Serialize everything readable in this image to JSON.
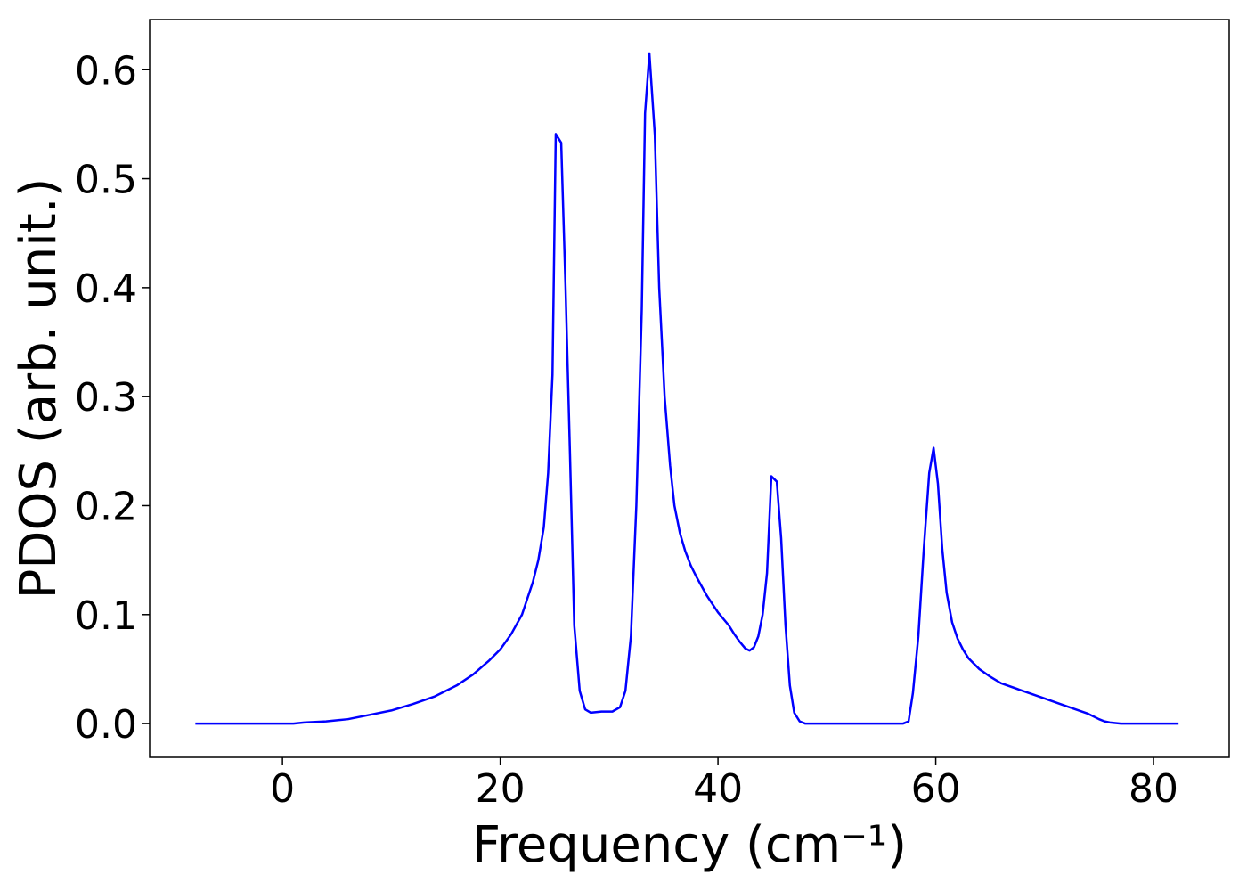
{
  "chart_data": {
    "type": "line",
    "xlabel": "Frequency (cm⁻¹)",
    "ylabel": "PDOS (arb. unit.)",
    "xlim": [
      -12.2,
      86.95
    ],
    "ylim": [
      -0.031,
      0.646
    ],
    "xticks": [
      0,
      20,
      40,
      60,
      80
    ],
    "yticks": [
      {
        "value": 0,
        "label": "0.0"
      },
      0.1,
      0.2,
      0.3,
      0.4,
      0.5,
      0.6
    ],
    "grid": false,
    "series": [
      {
        "color": "#0000ff",
        "x": [
          -8,
          -4,
          0,
          1,
          2,
          4,
          6,
          8,
          10,
          12,
          14,
          16,
          17.5,
          19,
          20,
          21,
          22,
          23,
          23.5,
          24,
          24.4,
          24.8,
          25.1,
          25.6,
          26,
          26.4,
          26.8,
          27.3,
          27.8,
          28.3,
          29.3,
          30.3,
          31,
          31.5,
          32,
          32.5,
          33,
          33.3,
          33.7,
          34.2,
          34.6,
          35.1,
          35.6,
          36,
          36.5,
          37,
          37.5,
          38,
          39,
          40,
          41,
          41.5,
          42,
          42.5,
          42.9,
          43.3,
          43.7,
          44.1,
          44.5,
          44.9,
          45.4,
          45.8,
          46.2,
          46.6,
          47,
          47.5,
          48,
          52,
          57,
          57.5,
          57.9,
          58.4,
          58.9,
          59.4,
          59.8,
          60.2,
          60.6,
          61,
          61.5,
          62,
          62.5,
          63,
          64,
          65,
          66,
          68,
          70,
          72,
          74,
          75,
          75.5,
          76,
          77,
          82.3
        ],
        "values": [
          0,
          0,
          0,
          0,
          0.001,
          0.002,
          0.004,
          0.008,
          0.012,
          0.018,
          0.025,
          0.035,
          0.045,
          0.058,
          0.068,
          0.082,
          0.1,
          0.13,
          0.15,
          0.18,
          0.23,
          0.32,
          0.541,
          0.533,
          0.4,
          0.25,
          0.09,
          0.03,
          0.013,
          0.01,
          0.011,
          0.011,
          0.015,
          0.03,
          0.08,
          0.2,
          0.38,
          0.56,
          0.615,
          0.54,
          0.4,
          0.3,
          0.237,
          0.2,
          0.175,
          0.158,
          0.145,
          0.135,
          0.117,
          0.102,
          0.09,
          0.082,
          0.075,
          0.069,
          0.067,
          0.07,
          0.08,
          0.1,
          0.138,
          0.227,
          0.222,
          0.17,
          0.09,
          0.035,
          0.01,
          0.002,
          0,
          0,
          0,
          0.002,
          0.028,
          0.08,
          0.16,
          0.23,
          0.253,
          0.22,
          0.16,
          0.12,
          0.093,
          0.078,
          0.068,
          0.06,
          0.05,
          0.043,
          0.037,
          0.03,
          0.023,
          0.016,
          0.009,
          0.004,
          0.002,
          0.001,
          0,
          0
        ]
      }
    ]
  }
}
